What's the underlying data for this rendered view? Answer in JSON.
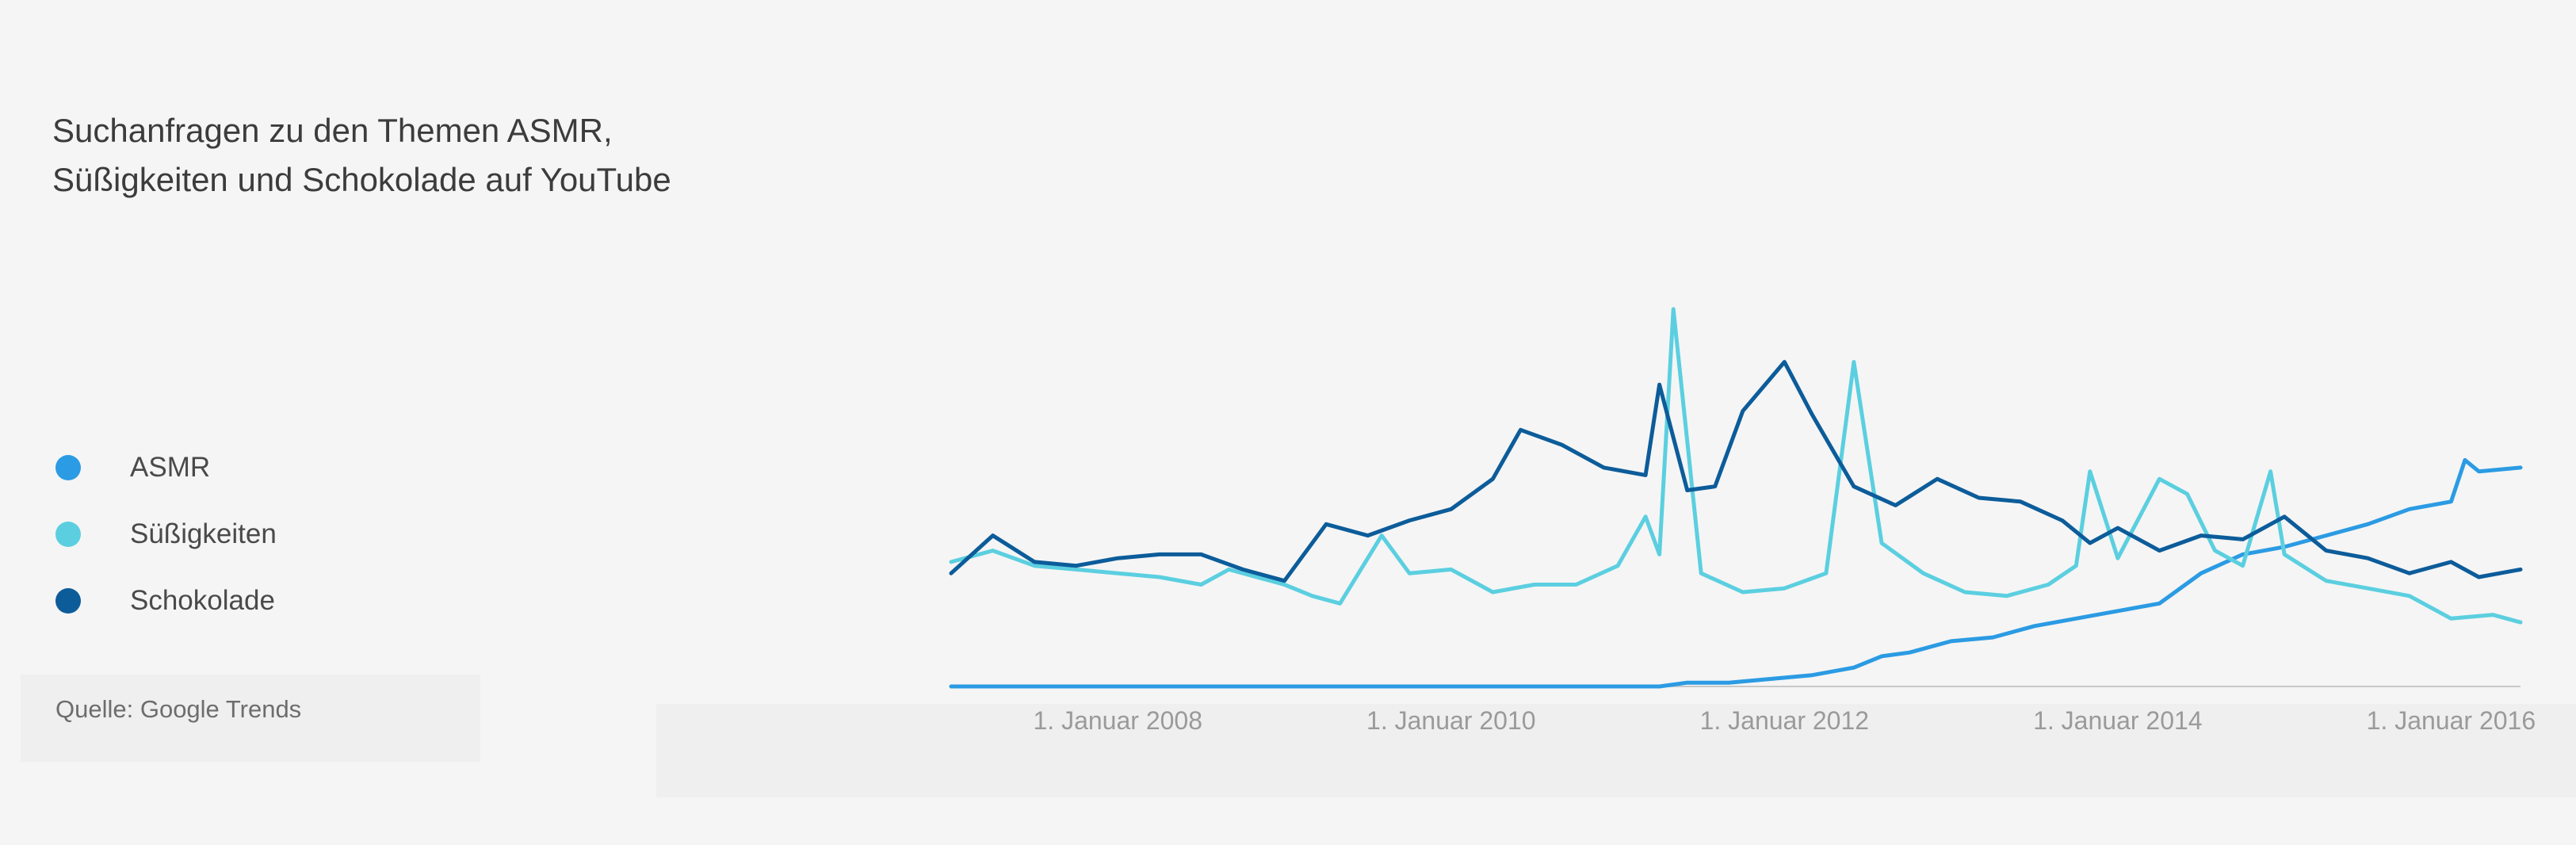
{
  "title_lines": [
    "Suchanfragen zu den Themen ASMR,",
    "Süßigkeiten und Schokolade auf YouTube"
  ],
  "source": "Quelle: Google Trends",
  "colors": {
    "asmr": "#2b9be3",
    "suessigkeiten": "#5bcfe0",
    "schokolade": "#0c5c9a",
    "axis": "#c8c8c8"
  },
  "chart_data": {
    "type": "line",
    "title": "Suchanfragen zu den Themen ASMR, Süßigkeiten und Schokolade auf YouTube",
    "xlabel": "",
    "ylabel": "",
    "x_ticks": [
      "1. Januar 2008",
      "1. Januar 2010",
      "1. Januar 2012",
      "1. Januar 2014",
      "1. Januar 2016"
    ],
    "x_range": [
      "2007-01",
      "2016-06"
    ],
    "ylim": [
      0,
      100
    ],
    "grid": false,
    "legend_position": "left",
    "series": [
      {
        "name": "ASMR",
        "points": [
          [
            "2007-01",
            0
          ],
          [
            "2007-06",
            0
          ],
          [
            "2008-01",
            0
          ],
          [
            "2008-06",
            0
          ],
          [
            "2009-01",
            0
          ],
          [
            "2009-06",
            0
          ],
          [
            "2010-01",
            0
          ],
          [
            "2010-06",
            0
          ],
          [
            "2011-01",
            0
          ],
          [
            "2011-04",
            0
          ],
          [
            "2011-06",
            1
          ],
          [
            "2011-09",
            1
          ],
          [
            "2011-12",
            2
          ],
          [
            "2012-03",
            3
          ],
          [
            "2012-06",
            5
          ],
          [
            "2012-08",
            8
          ],
          [
            "2012-10",
            9
          ],
          [
            "2013-01",
            12
          ],
          [
            "2013-04",
            13
          ],
          [
            "2013-07",
            16
          ],
          [
            "2013-10",
            18
          ],
          [
            "2014-01",
            20
          ],
          [
            "2014-04",
            22
          ],
          [
            "2014-07",
            30
          ],
          [
            "2014-10",
            35
          ],
          [
            "2015-01",
            37
          ],
          [
            "2015-04",
            40
          ],
          [
            "2015-07",
            43
          ],
          [
            "2015-10",
            47
          ],
          [
            "2016-01",
            49
          ],
          [
            "2016-02",
            60
          ],
          [
            "2016-03",
            57
          ],
          [
            "2016-06",
            58
          ]
        ]
      },
      {
        "name": "Süßigkeiten",
        "points": [
          [
            "2007-01",
            33
          ],
          [
            "2007-04",
            36
          ],
          [
            "2007-07",
            32
          ],
          [
            "2007-10",
            31
          ],
          [
            "2008-01",
            30
          ],
          [
            "2008-04",
            29
          ],
          [
            "2008-07",
            27
          ],
          [
            "2008-09",
            31
          ],
          [
            "2008-11",
            29
          ],
          [
            "2009-01",
            27
          ],
          [
            "2009-03",
            24
          ],
          [
            "2009-05",
            22
          ],
          [
            "2009-08",
            40
          ],
          [
            "2009-10",
            30
          ],
          [
            "2010-01",
            31
          ],
          [
            "2010-04",
            25
          ],
          [
            "2010-07",
            27
          ],
          [
            "2010-10",
            27
          ],
          [
            "2011-01",
            32
          ],
          [
            "2011-03",
            45
          ],
          [
            "2011-04",
            35
          ],
          [
            "2011-05",
            100
          ],
          [
            "2011-07",
            30
          ],
          [
            "2011-10",
            25
          ],
          [
            "2012-01",
            26
          ],
          [
            "2012-04",
            30
          ],
          [
            "2012-06",
            86
          ],
          [
            "2012-08",
            38
          ],
          [
            "2012-11",
            30
          ],
          [
            "2013-02",
            25
          ],
          [
            "2013-05",
            24
          ],
          [
            "2013-08",
            27
          ],
          [
            "2013-10",
            32
          ],
          [
            "2013-11",
            57
          ],
          [
            "2014-01",
            34
          ],
          [
            "2014-04",
            55
          ],
          [
            "2014-06",
            51
          ],
          [
            "2014-08",
            36
          ],
          [
            "2014-10",
            32
          ],
          [
            "2014-12",
            57
          ],
          [
            "2015-01",
            35
          ],
          [
            "2015-04",
            28
          ],
          [
            "2015-07",
            26
          ],
          [
            "2015-10",
            24
          ],
          [
            "2016-01",
            18
          ],
          [
            "2016-04",
            19
          ],
          [
            "2016-06",
            17
          ]
        ]
      },
      {
        "name": "Schokolade",
        "points": [
          [
            "2007-01",
            30
          ],
          [
            "2007-04",
            40
          ],
          [
            "2007-07",
            33
          ],
          [
            "2007-10",
            32
          ],
          [
            "2008-01",
            34
          ],
          [
            "2008-04",
            35
          ],
          [
            "2008-07",
            35
          ],
          [
            "2008-10",
            31
          ],
          [
            "2009-01",
            28
          ],
          [
            "2009-04",
            43
          ],
          [
            "2009-07",
            40
          ],
          [
            "2009-10",
            44
          ],
          [
            "2010-01",
            47
          ],
          [
            "2010-04",
            55
          ],
          [
            "2010-06",
            68
          ],
          [
            "2010-09",
            64
          ],
          [
            "2010-12",
            58
          ],
          [
            "2011-03",
            56
          ],
          [
            "2011-04",
            80
          ],
          [
            "2011-06",
            52
          ],
          [
            "2011-08",
            53
          ],
          [
            "2011-10",
            73
          ],
          [
            "2012-01",
            86
          ],
          [
            "2012-03",
            72
          ],
          [
            "2012-06",
            53
          ],
          [
            "2012-09",
            48
          ],
          [
            "2012-12",
            55
          ],
          [
            "2013-03",
            50
          ],
          [
            "2013-06",
            49
          ],
          [
            "2013-09",
            44
          ],
          [
            "2013-11",
            38
          ],
          [
            "2014-01",
            42
          ],
          [
            "2014-04",
            36
          ],
          [
            "2014-07",
            40
          ],
          [
            "2014-10",
            39
          ],
          [
            "2015-01",
            45
          ],
          [
            "2015-04",
            36
          ],
          [
            "2015-07",
            34
          ],
          [
            "2015-10",
            30
          ],
          [
            "2016-01",
            33
          ],
          [
            "2016-03",
            29
          ],
          [
            "2016-06",
            31
          ]
        ]
      }
    ]
  }
}
